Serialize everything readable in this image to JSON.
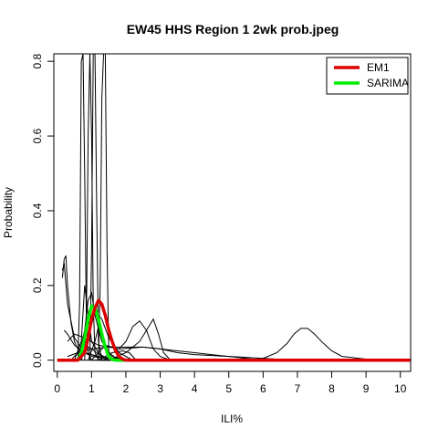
{
  "chart_data": {
    "type": "line",
    "title": "EW45 HHS Region 1 2wk prob.jpeg",
    "xlabel": "ILI%",
    "ylabel": "Probability",
    "xlim": [
      -0.1,
      10.3
    ],
    "ylim": [
      -0.03,
      0.82
    ],
    "xticks": [
      0,
      1,
      2,
      3,
      4,
      5,
      6,
      7,
      8,
      9,
      10
    ],
    "xtick_labels": [
      "0",
      "1",
      "2",
      "3",
      "4",
      "5",
      "6",
      "7",
      "8",
      "9",
      "10"
    ],
    "yticks": [
      0.0,
      0.2,
      0.4,
      0.6,
      0.8
    ],
    "ytick_labels": [
      "0.0",
      "0.2",
      "0.4",
      "0.6",
      "0.8"
    ],
    "legend": {
      "position": "top-right",
      "entries": [
        {
          "name": "EM1",
          "color": "#dd0000"
        },
        {
          "name": "SARIMA",
          "color": "#00ee00"
        }
      ]
    },
    "background_series": [
      {
        "color": "#000000",
        "points": [
          [
            0.15,
            0.22
          ],
          [
            0.2,
            0.27
          ],
          [
            0.25,
            0.28
          ],
          [
            0.3,
            0.2
          ],
          [
            0.4,
            0.1
          ],
          [
            0.5,
            0.05
          ],
          [
            0.6,
            0.03
          ],
          [
            0.8,
            0.02
          ],
          [
            1.0,
            0.01
          ],
          [
            1.5,
            0.005
          ],
          [
            3.0,
            0.0
          ],
          [
            10.3,
            0.0
          ]
        ]
      },
      {
        "color": "#000000",
        "points": [
          [
            0.15,
            0.24
          ],
          [
            0.2,
            0.26
          ],
          [
            0.3,
            0.15
          ],
          [
            0.5,
            0.06
          ],
          [
            0.8,
            0.02
          ],
          [
            1.5,
            0.0
          ],
          [
            10.3,
            0.0
          ]
        ]
      },
      {
        "color": "#000000",
        "points": [
          [
            0.6,
            0.0
          ],
          [
            0.65,
            0.15
          ],
          [
            0.7,
            0.8
          ],
          [
            0.75,
            0.82
          ],
          [
            0.8,
            0.5
          ],
          [
            0.85,
            0.1
          ],
          [
            0.9,
            0.02
          ],
          [
            1.0,
            0.0
          ],
          [
            10.3,
            0.0
          ]
        ]
      },
      {
        "color": "#000000",
        "points": [
          [
            0.8,
            0.0
          ],
          [
            0.85,
            0.1
          ],
          [
            0.9,
            0.6
          ],
          [
            0.95,
            0.82
          ],
          [
            1.0,
            0.6
          ],
          [
            1.05,
            0.15
          ],
          [
            1.1,
            0.02
          ],
          [
            1.2,
            0.0
          ],
          [
            10.3,
            0.0
          ]
        ]
      },
      {
        "color": "#000000",
        "points": [
          [
            0.95,
            0.0
          ],
          [
            1.0,
            0.3
          ],
          [
            1.05,
            0.82
          ],
          [
            1.1,
            0.82
          ],
          [
            1.15,
            0.4
          ],
          [
            1.2,
            0.05
          ],
          [
            1.3,
            0.0
          ],
          [
            10.3,
            0.0
          ]
        ]
      },
      {
        "color": "#000000",
        "points": [
          [
            1.2,
            0.0
          ],
          [
            1.25,
            0.2
          ],
          [
            1.3,
            0.7
          ],
          [
            1.35,
            0.82
          ],
          [
            1.4,
            0.82
          ],
          [
            1.45,
            0.3
          ],
          [
            1.5,
            0.02
          ],
          [
            1.6,
            0.0
          ],
          [
            10.3,
            0.0
          ]
        ]
      },
      {
        "color": "#000000",
        "points": [
          [
            0.5,
            0.0
          ],
          [
            0.7,
            0.05
          ],
          [
            0.8,
            0.2
          ],
          [
            0.9,
            0.12
          ],
          [
            1.0,
            0.05
          ],
          [
            1.2,
            0.02
          ],
          [
            1.5,
            0.0
          ],
          [
            10.3,
            0.0
          ]
        ]
      },
      {
        "color": "#000000",
        "points": [
          [
            0.6,
            0.0
          ],
          [
            0.8,
            0.08
          ],
          [
            0.9,
            0.16
          ],
          [
            1.0,
            0.18
          ],
          [
            1.1,
            0.12
          ],
          [
            1.3,
            0.05
          ],
          [
            1.6,
            0.01
          ],
          [
            2.0,
            0.0
          ],
          [
            10.3,
            0.0
          ]
        ]
      },
      {
        "color": "#000000",
        "points": [
          [
            0.7,
            0.0
          ],
          [
            0.9,
            0.06
          ],
          [
            1.1,
            0.13
          ],
          [
            1.3,
            0.11
          ],
          [
            1.5,
            0.06
          ],
          [
            1.8,
            0.02
          ],
          [
            2.2,
            0.0
          ],
          [
            10.3,
            0.0
          ]
        ]
      },
      {
        "color": "#000000",
        "points": [
          [
            1.0,
            0.0
          ],
          [
            1.4,
            0.04
          ],
          [
            1.8,
            0.03
          ],
          [
            2.0,
            0.05
          ],
          [
            2.2,
            0.09
          ],
          [
            2.4,
            0.105
          ],
          [
            2.6,
            0.08
          ],
          [
            2.8,
            0.03
          ],
          [
            3.0,
            0.01
          ],
          [
            3.3,
            0.0
          ],
          [
            10.3,
            0.0
          ]
        ]
      },
      {
        "color": "#000000",
        "points": [
          [
            1.5,
            0.0
          ],
          [
            2.0,
            0.02
          ],
          [
            2.4,
            0.05
          ],
          [
            2.6,
            0.08
          ],
          [
            2.8,
            0.11
          ],
          [
            2.95,
            0.07
          ],
          [
            3.1,
            0.02
          ],
          [
            3.3,
            0.0
          ],
          [
            10.3,
            0.0
          ]
        ]
      },
      {
        "color": "#000000",
        "points": [
          [
            0.3,
            0.05
          ],
          [
            0.5,
            0.07
          ],
          [
            0.8,
            0.06
          ],
          [
            1.2,
            0.04
          ],
          [
            1.8,
            0.03
          ],
          [
            2.5,
            0.035
          ],
          [
            3.0,
            0.03
          ],
          [
            3.5,
            0.025
          ],
          [
            4.0,
            0.02
          ],
          [
            4.5,
            0.015
          ],
          [
            5.0,
            0.01
          ],
          [
            5.5,
            0.005
          ],
          [
            6.0,
            0.0
          ],
          [
            10.3,
            0.0
          ]
        ]
      },
      {
        "color": "#000000",
        "points": [
          [
            0.3,
            0.01
          ],
          [
            0.6,
            0.02
          ],
          [
            1.0,
            0.03
          ],
          [
            1.5,
            0.035
          ],
          [
            2.0,
            0.035
          ],
          [
            2.5,
            0.035
          ],
          [
            3.0,
            0.03
          ],
          [
            3.5,
            0.02
          ],
          [
            4.0,
            0.015
          ],
          [
            5.0,
            0.01
          ],
          [
            6.0,
            0.005
          ],
          [
            7.0,
            0.0
          ],
          [
            10.3,
            0.0
          ]
        ]
      },
      {
        "color": "#000000",
        "points": [
          [
            0.2,
            0.08
          ],
          [
            0.3,
            0.07
          ],
          [
            0.5,
            0.04
          ],
          [
            0.8,
            0.02
          ],
          [
            1.2,
            0.01
          ],
          [
            2.0,
            0.0
          ],
          [
            10.3,
            0.0
          ]
        ]
      },
      {
        "color": "#000000",
        "points": [
          [
            1.2,
            0.0
          ],
          [
            1.6,
            0.02
          ],
          [
            1.9,
            0.025
          ],
          [
            2.1,
            0.02
          ],
          [
            2.3,
            0.0
          ],
          [
            10.3,
            0.0
          ]
        ]
      },
      {
        "color": "#000000",
        "points": [
          [
            0.0,
            0.0
          ],
          [
            5.5,
            0.0
          ],
          [
            6.0,
            0.005
          ],
          [
            6.4,
            0.02
          ],
          [
            6.7,
            0.045
          ],
          [
            6.9,
            0.07
          ],
          [
            7.1,
            0.085
          ],
          [
            7.3,
            0.085
          ],
          [
            7.5,
            0.07
          ],
          [
            7.7,
            0.05
          ],
          [
            8.0,
            0.025
          ],
          [
            8.3,
            0.01
          ],
          [
            8.8,
            0.005
          ],
          [
            9.3,
            0.0
          ],
          [
            10.3,
            0.0
          ]
        ]
      },
      {
        "color": "#000000",
        "points": [
          [
            0.4,
            0.0
          ],
          [
            0.6,
            0.02
          ],
          [
            0.8,
            0.04
          ],
          [
            1.0,
            0.03
          ],
          [
            1.3,
            0.01
          ],
          [
            1.7,
            0.0
          ],
          [
            10.3,
            0.0
          ]
        ]
      },
      {
        "color": "#000000",
        "points": [
          [
            0.9,
            0.0
          ],
          [
            1.1,
            0.05
          ],
          [
            1.2,
            0.09
          ],
          [
            1.3,
            0.06
          ],
          [
            1.5,
            0.02
          ],
          [
            1.8,
            0.0
          ],
          [
            10.3,
            0.0
          ]
        ]
      }
    ],
    "series": [
      {
        "name": "SARIMA",
        "color": "#00ee00",
        "points": [
          [
            0.0,
            0.0
          ],
          [
            0.6,
            0.0
          ],
          [
            0.7,
            0.02
          ],
          [
            0.8,
            0.06
          ],
          [
            0.9,
            0.11
          ],
          [
            1.0,
            0.145
          ],
          [
            1.1,
            0.14
          ],
          [
            1.2,
            0.11
          ],
          [
            1.3,
            0.07
          ],
          [
            1.4,
            0.035
          ],
          [
            1.5,
            0.01
          ],
          [
            1.6,
            0.002
          ],
          [
            1.7,
            0.0
          ],
          [
            10.3,
            0.0
          ]
        ]
      },
      {
        "name": "EM1",
        "color": "#dd0000",
        "points": [
          [
            0.0,
            0.0
          ],
          [
            0.6,
            0.0
          ],
          [
            0.8,
            0.02
          ],
          [
            0.9,
            0.06
          ],
          [
            1.0,
            0.11
          ],
          [
            1.1,
            0.14
          ],
          [
            1.2,
            0.16
          ],
          [
            1.3,
            0.15
          ],
          [
            1.4,
            0.12
          ],
          [
            1.5,
            0.08
          ],
          [
            1.6,
            0.05
          ],
          [
            1.7,
            0.025
          ],
          [
            1.8,
            0.01
          ],
          [
            1.9,
            0.003
          ],
          [
            2.0,
            0.0
          ],
          [
            10.3,
            0.0
          ]
        ]
      }
    ]
  }
}
